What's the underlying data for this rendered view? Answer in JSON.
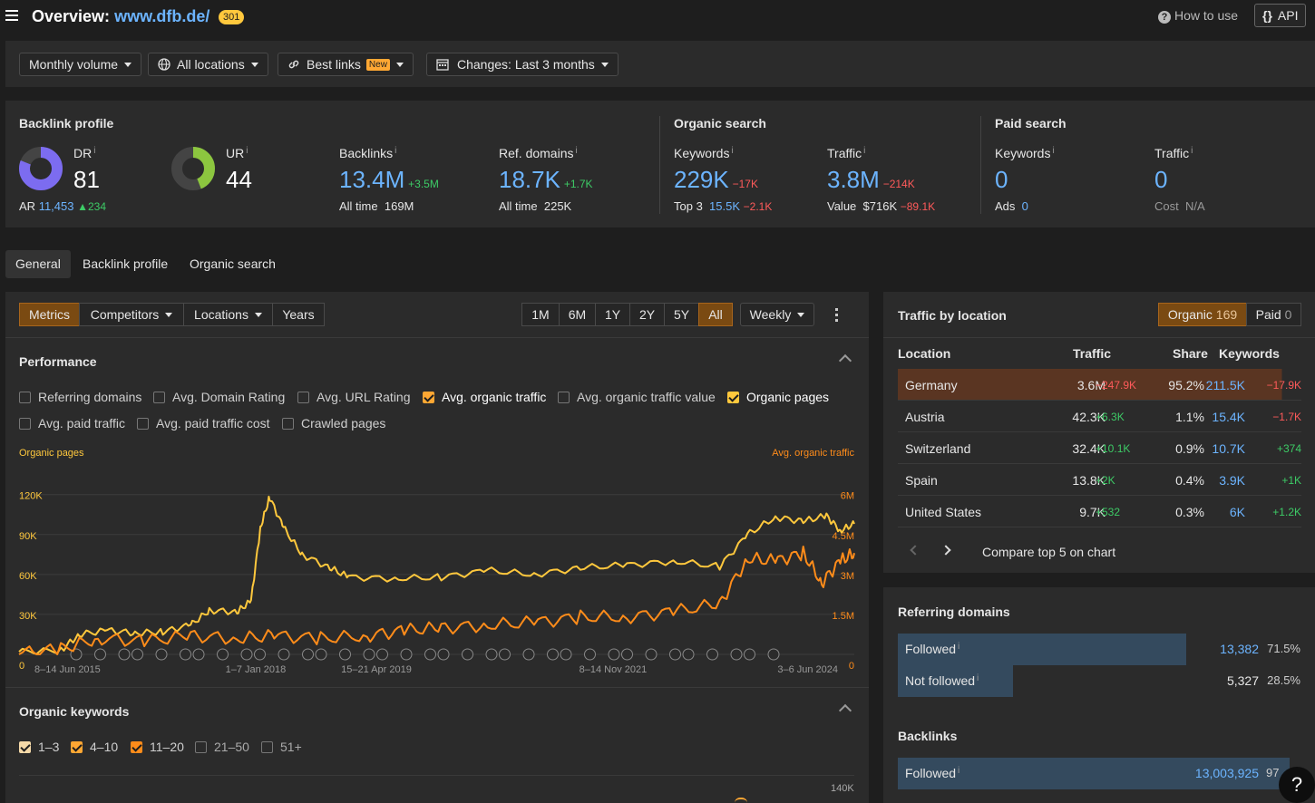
{
  "header": {
    "title": "Overview:",
    "domain": "www.dfb.de/",
    "badge": "301",
    "how_to": "How to use",
    "api": "API"
  },
  "toolbar": {
    "volume": "Monthly volume",
    "locations": "All locations",
    "links": "Best links",
    "links_badge": "New",
    "changes": "Changes: Last 3 months"
  },
  "backlink_profile": {
    "title": "Backlink profile",
    "dr_label": "DR",
    "dr": "81",
    "ar_label": "AR",
    "ar": "11,453",
    "ar_delta": "234",
    "ur_label": "UR",
    "ur": "44",
    "dr_fraction": 0.81,
    "ur_fraction": 0.44,
    "backlinks_label": "Backlinks",
    "backlinks": "13.4M",
    "backlinks_delta": "+3.5M",
    "backlinks_alltime_label": "All time",
    "backlinks_alltime": "169M",
    "refdomains_label": "Ref. domains",
    "refdomains": "18.7K",
    "refdomains_delta": "+1.7K",
    "refdomains_alltime_label": "All time",
    "refdomains_alltime": "225K"
  },
  "organic_search": {
    "title": "Organic search",
    "keywords_label": "Keywords",
    "keywords": "229K",
    "keywords_delta": "−17K",
    "top3_label": "Top 3",
    "top3": "15.5K",
    "top3_delta": "−2.1K",
    "traffic_label": "Traffic",
    "traffic": "3.8M",
    "traffic_delta": "−214K",
    "value_label": "Value",
    "value": "$716K",
    "value_delta": "−89.1K"
  },
  "paid_search": {
    "title": "Paid search",
    "keywords_label": "Keywords",
    "keywords": "0",
    "ads_label": "Ads",
    "ads": "0",
    "traffic_label": "Traffic",
    "traffic": "0",
    "cost_label": "Cost",
    "cost": "N/A"
  },
  "tabs": [
    "General",
    "Backlink profile",
    "Organic search"
  ],
  "chart_toolbar": {
    "metrics": "Metrics",
    "competitors": "Competitors",
    "locations": "Locations",
    "years": "Years",
    "ranges": [
      "1M",
      "6M",
      "1Y",
      "2Y",
      "5Y",
      "All"
    ],
    "interval": "Weekly"
  },
  "performance": {
    "title": "Performance",
    "options": [
      {
        "label": "Referring domains",
        "checked": false
      },
      {
        "label": "Avg. Domain Rating",
        "checked": false
      },
      {
        "label": "Avg. URL Rating",
        "checked": false
      },
      {
        "label": "Avg. organic traffic",
        "checked": true
      },
      {
        "label": "Avg. organic traffic value",
        "checked": false
      },
      {
        "label": "Organic pages",
        "checked": true
      },
      {
        "label": "Avg. paid traffic",
        "checked": false
      },
      {
        "label": "Avg. paid traffic cost",
        "checked": false
      },
      {
        "label": "Crawled pages",
        "checked": false
      }
    ]
  },
  "chart_data": {
    "type": "line",
    "left_axis_label": "Organic pages",
    "right_axis_label": "Avg. organic traffic",
    "left_ticks": [
      "120K",
      "90K",
      "60K",
      "30K",
      "0"
    ],
    "right_ticks": [
      "6M",
      "4.5M",
      "3M",
      "1.5M",
      "0"
    ],
    "x_ticks": [
      "8–14 Jun 2015",
      "1–7 Jan 2018",
      "15–21 Apr 2019",
      "8–14 Nov 2021",
      "3–6 Jun 2024"
    ],
    "series": [
      {
        "name": "Organic pages",
        "color": "#ffc83d",
        "axis": "left",
        "points": [
          [
            2015.45,
            2000
          ],
          [
            2015.9,
            3000
          ],
          [
            2016.1,
            15000
          ],
          [
            2016.4,
            18000
          ],
          [
            2016.7,
            16000
          ],
          [
            2017.0,
            17000
          ],
          [
            2017.3,
            22000
          ],
          [
            2017.5,
            33000
          ],
          [
            2017.8,
            32000
          ],
          [
            2017.95,
            40000
          ],
          [
            2018.05,
            95000
          ],
          [
            2018.15,
            118000
          ],
          [
            2018.3,
            95000
          ],
          [
            2018.5,
            75000
          ],
          [
            2018.8,
            65000
          ],
          [
            2019.0,
            58000
          ],
          [
            2019.5,
            57000
          ],
          [
            2020.0,
            58000
          ],
          [
            2020.5,
            63000
          ],
          [
            2021.0,
            60000
          ],
          [
            2021.5,
            65000
          ],
          [
            2022.0,
            67000
          ],
          [
            2022.5,
            70000
          ],
          [
            2023.0,
            66000
          ],
          [
            2023.3,
            90000
          ],
          [
            2023.6,
            103000
          ],
          [
            2023.9,
            100000
          ],
          [
            2024.15,
            104000
          ],
          [
            2024.3,
            93000
          ],
          [
            2024.45,
            98000
          ]
        ]
      },
      {
        "name": "Avg. organic traffic",
        "color": "#ff8c1a",
        "axis": "right",
        "points": [
          [
            2015.45,
            0.05
          ],
          [
            2015.9,
            0.2
          ],
          [
            2016.3,
            0.6
          ],
          [
            2016.8,
            0.5
          ],
          [
            2017.3,
            0.7
          ],
          [
            2017.8,
            0.6
          ],
          [
            2018.2,
            0.7
          ],
          [
            2018.7,
            0.6
          ],
          [
            2019.2,
            0.7
          ],
          [
            2019.6,
            0.9
          ],
          [
            2020.0,
            1.0
          ],
          [
            2020.5,
            1.1
          ],
          [
            2021.0,
            1.2
          ],
          [
            2021.5,
            1.4
          ],
          [
            2022.0,
            1.4
          ],
          [
            2022.5,
            1.6
          ],
          [
            2023.0,
            1.9
          ],
          [
            2023.3,
            3.6
          ],
          [
            2023.6,
            3.5
          ],
          [
            2023.9,
            3.8
          ],
          [
            2024.1,
            2.7
          ],
          [
            2024.3,
            3.5
          ],
          [
            2024.45,
            3.8
          ]
        ]
      }
    ]
  },
  "traffic_by_location": {
    "title": "Traffic by location",
    "organic_label": "Organic",
    "organic_count": "169",
    "paid_label": "Paid",
    "paid_count": "0",
    "columns": [
      "Location",
      "Traffic",
      "Share",
      "Keywords"
    ],
    "rows": [
      {
        "location": "Germany",
        "traffic": "3.6M",
        "traffic_delta": "−247.9K",
        "share": "95.2%",
        "keywords": "211.5K",
        "keywords_delta": "−17.9K",
        "share_fraction": 0.952
      },
      {
        "location": "Austria",
        "traffic": "42.3K",
        "traffic_delta": "+6.3K",
        "share": "1.1%",
        "keywords": "15.4K",
        "keywords_delta": "−1.7K",
        "share_fraction": 0.011
      },
      {
        "location": "Switzerland",
        "traffic": "32.4K",
        "traffic_delta": "+10.1K",
        "share": "0.9%",
        "keywords": "10.7K",
        "keywords_delta": "+374",
        "share_fraction": 0.009
      },
      {
        "location": "Spain",
        "traffic": "13.8K",
        "traffic_delta": "+2K",
        "share": "0.4%",
        "keywords": "3.9K",
        "keywords_delta": "+1K",
        "share_fraction": 0.004
      },
      {
        "location": "United States",
        "traffic": "9.7K",
        "traffic_delta": "+532",
        "share": "0.3%",
        "keywords": "6K",
        "keywords_delta": "+1.2K",
        "share_fraction": 0.003
      }
    ],
    "compare": "Compare top 5 on chart"
  },
  "referring_domains": {
    "title": "Referring domains",
    "followed_label": "Followed",
    "followed": "13,382",
    "followed_pct": "71.5%",
    "followed_fraction": 0.715,
    "notfollowed_label": "Not followed",
    "notfollowed": "5,327",
    "notfollowed_pct": "28.5%",
    "notfollowed_fraction": 0.285
  },
  "backlinks_panel": {
    "title": "Backlinks",
    "followed_label": "Followed",
    "followed": "13,003,925",
    "followed_pct": "97",
    "followed_fraction": 0.97
  },
  "organic_keywords": {
    "title": "Organic keywords",
    "options": [
      {
        "label": "1–3",
        "checked": true
      },
      {
        "label": "4–10",
        "checked": true
      },
      {
        "label": "11–20",
        "checked": true
      },
      {
        "label": "21–50",
        "checked": false
      },
      {
        "label": "51+",
        "checked": false
      }
    ],
    "tick": "140K"
  },
  "help": "?"
}
